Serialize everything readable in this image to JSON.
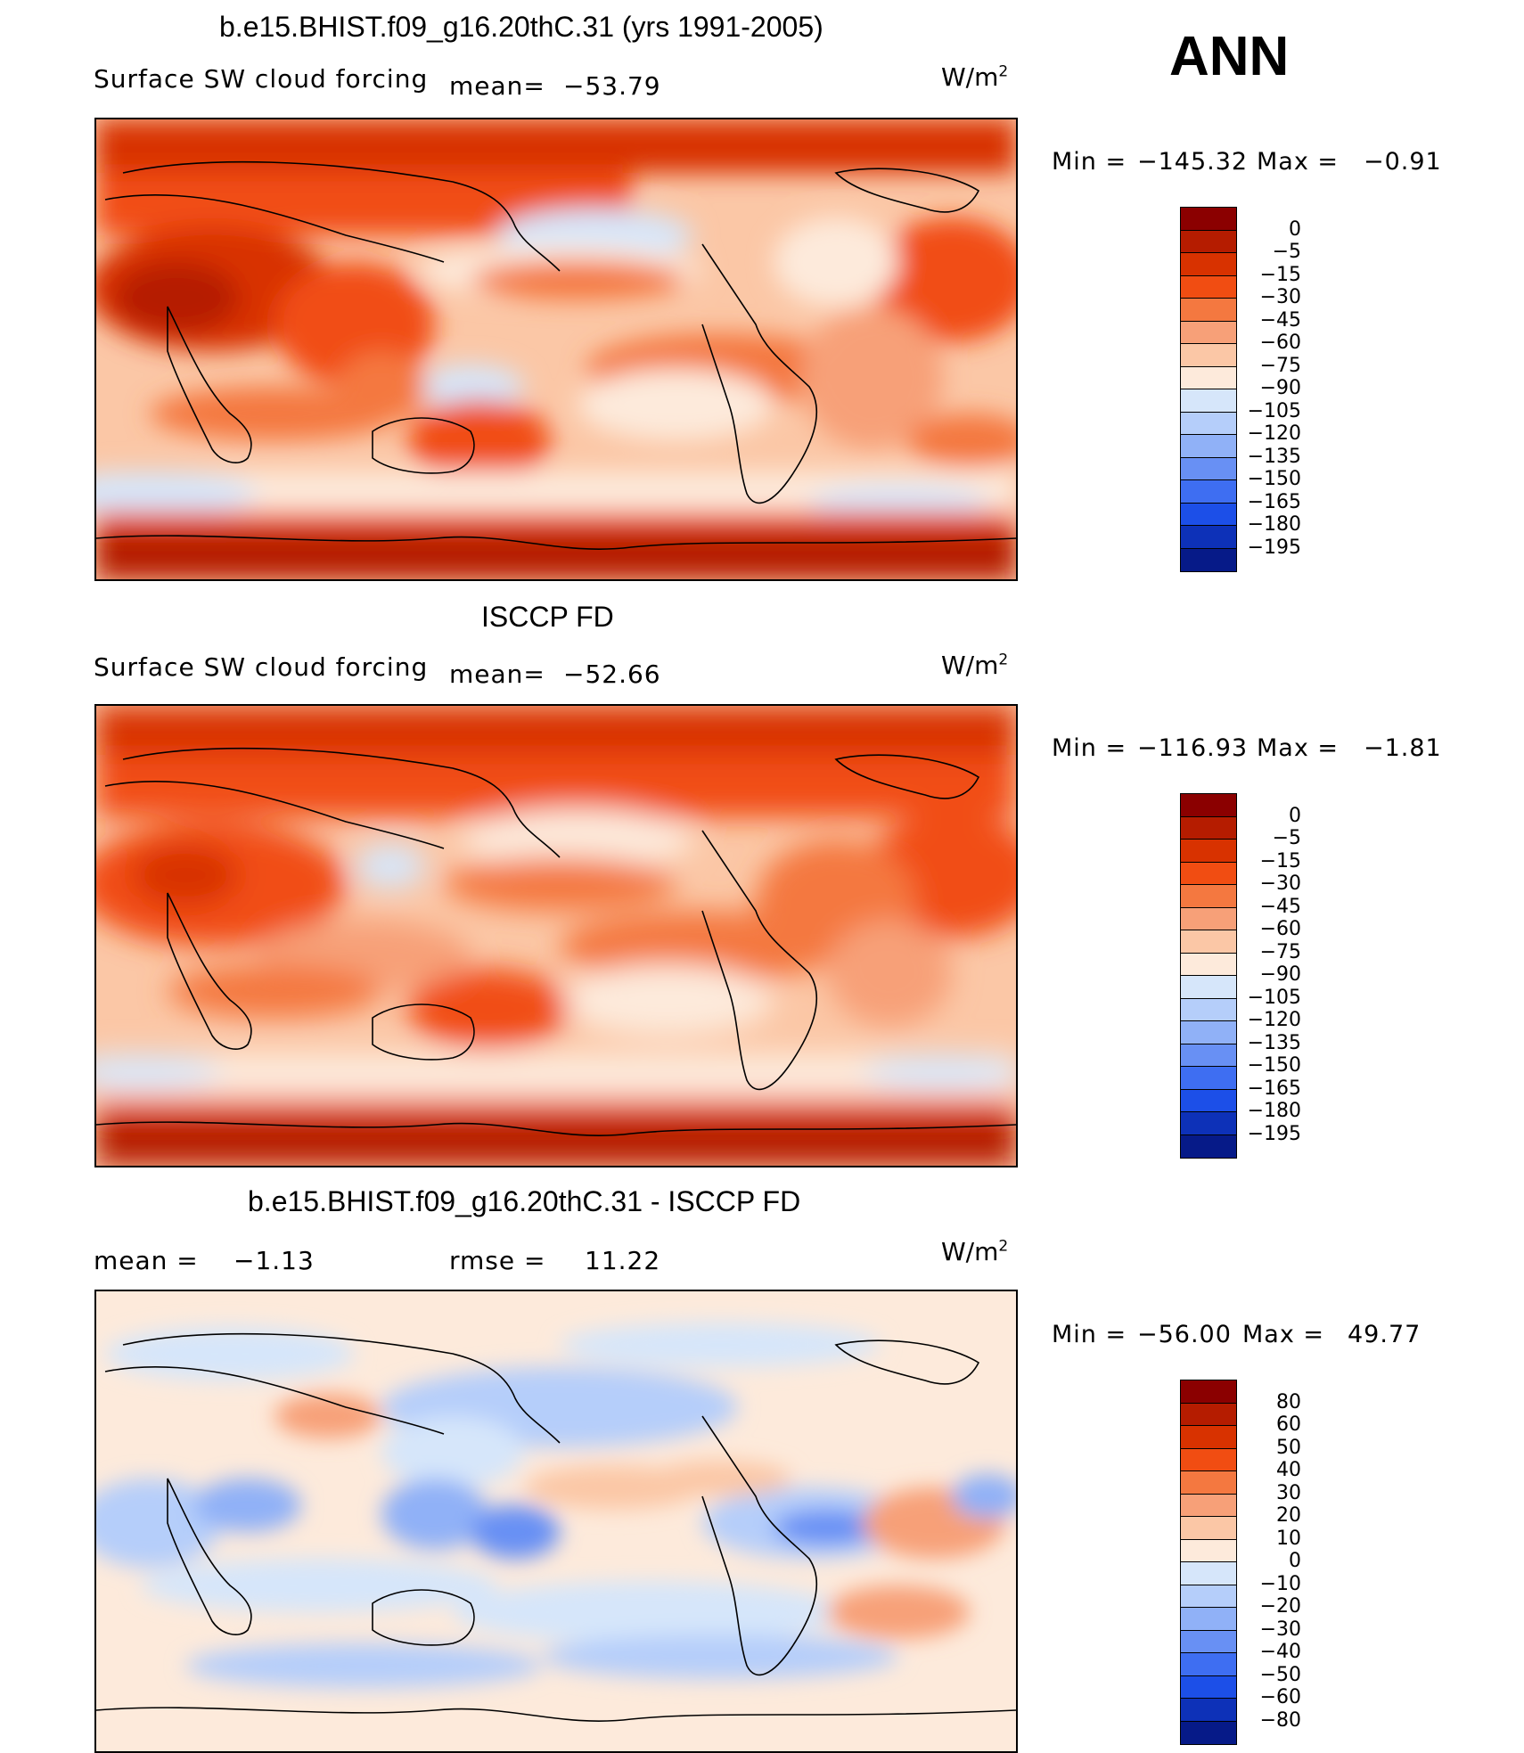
{
  "season": "ANN",
  "panels": [
    {
      "title": "b.e15.BHIST.f09_g16.20thC.31 (yrs 1991-2005)",
      "variable": "Surface SW cloud forcing",
      "stat_label": "mean=",
      "stat_value": "−53.79",
      "units_base": "W/m",
      "units_exp": "2",
      "min_label": "Min  =",
      "min_value": "−145.32",
      "max_label": "Max  =",
      "max_value": "−0.91",
      "colorbar_labels": [
        "0",
        "−5",
        "−15",
        "−30",
        "−45",
        "−60",
        "−75",
        "−90",
        "−105",
        "−120",
        "−135",
        "−150",
        "−165",
        "−180",
        "−195"
      ],
      "colorbar_colors": [
        "#8b0000",
        "#b51c00",
        "#d83200",
        "#f14d12",
        "#f47840",
        "#f7a078",
        "#fbc7a6",
        "#fdeadb",
        "#d6e6fa",
        "#b5cefa",
        "#90b1f7",
        "#6890f4",
        "#3e6ef2",
        "#1c4fe8",
        "#0d31b8",
        "#061a88"
      ]
    },
    {
      "title": "ISCCP FD",
      "variable": "Surface SW cloud forcing",
      "stat_label": "mean=",
      "stat_value": "−52.66",
      "units_base": "W/m",
      "units_exp": "2",
      "min_label": "Min  =",
      "min_value": "−116.93",
      "max_label": "Max  =",
      "max_value": "−1.81",
      "colorbar_labels": [
        "0",
        "−5",
        "−15",
        "−30",
        "−45",
        "−60",
        "−75",
        "−90",
        "−105",
        "−120",
        "−135",
        "−150",
        "−165",
        "−180",
        "−195"
      ],
      "colorbar_colors": [
        "#8b0000",
        "#b51c00",
        "#d83200",
        "#f14d12",
        "#f47840",
        "#f7a078",
        "#fbc7a6",
        "#fdeadb",
        "#d6e6fa",
        "#b5cefa",
        "#90b1f7",
        "#6890f4",
        "#3e6ef2",
        "#1c4fe8",
        "#0d31b8",
        "#061a88"
      ]
    },
    {
      "title": "b.e15.BHIST.f09_g16.20thC.31 - ISCCP FD",
      "mean_label": "mean  =",
      "mean_value": "−1.13",
      "rmse_label": "rmse  =",
      "rmse_value": "11.22",
      "units_base": "W/m",
      "units_exp": "2",
      "min_label": "Min  =",
      "min_value": "−56.00",
      "max_label": "Max  =",
      "max_value": "49.77",
      "colorbar_labels": [
        "80",
        "60",
        "50",
        "40",
        "30",
        "20",
        "10",
        "0",
        "−10",
        "−20",
        "−30",
        "−40",
        "−50",
        "−60",
        "−80"
      ],
      "colorbar_colors": [
        "#8b0000",
        "#b51c00",
        "#d83200",
        "#f14d12",
        "#f47840",
        "#f7a078",
        "#fbc7a6",
        "#fdeadb",
        "#d6e6fa",
        "#b5cefa",
        "#90b1f7",
        "#6890f4",
        "#3e6ef2",
        "#1c4fe8",
        "#0d31b8",
        "#061a88"
      ]
    }
  ]
}
